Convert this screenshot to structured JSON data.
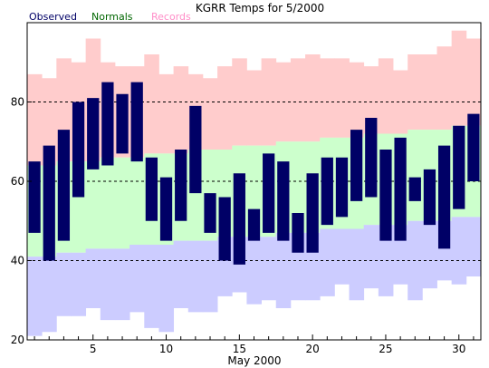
{
  "chart_data": {
    "type": "bar",
    "title": "KGRR Temps for 5/2000",
    "xlabel": "May 2000",
    "ylabel": "",
    "ylim": [
      20,
      100
    ],
    "xlim": [
      0.5,
      31.5
    ],
    "yticks": [
      20,
      40,
      60,
      80
    ],
    "xticks": [
      5,
      10,
      15,
      20,
      25,
      30
    ],
    "gridlines_y": [
      40,
      60,
      80
    ],
    "legend": {
      "placement": "top-left",
      "entries": [
        {
          "name": "Observed",
          "color": "#000066"
        },
        {
          "name": "Normals",
          "color": "#006600"
        },
        {
          "name": "Records",
          "color": "#ff8ec8"
        }
      ]
    },
    "colors": {
      "observed": "#000066",
      "normals_fill": "#ccffcc",
      "record_high_fill": "#ffcccc",
      "record_low_fill": "#ccccff"
    },
    "days": [
      1,
      2,
      3,
      4,
      5,
      6,
      7,
      8,
      9,
      10,
      11,
      12,
      13,
      14,
      15,
      16,
      17,
      18,
      19,
      20,
      21,
      22,
      23,
      24,
      25,
      26,
      27,
      28,
      29,
      30,
      31
    ],
    "series": [
      {
        "name": "Observed",
        "low": [
          47,
          40,
          45,
          56,
          63,
          64,
          67,
          65,
          50,
          45,
          50,
          57,
          47,
          40,
          39,
          45,
          47,
          45,
          42,
          42,
          49,
          51,
          55,
          56,
          45,
          45,
          55,
          49,
          43,
          53,
          60
        ],
        "high": [
          65,
          69,
          73,
          80,
          81,
          85,
          82,
          85,
          66,
          61,
          68,
          79,
          57,
          56,
          62,
          53,
          67,
          65,
          52,
          62,
          66,
          66,
          73,
          76,
          68,
          71,
          61,
          63,
          69,
          74,
          77
        ]
      },
      {
        "name": "Normals",
        "low": [
          41,
          41,
          42,
          42,
          43,
          43,
          43,
          44,
          44,
          44,
          45,
          45,
          45,
          46,
          46,
          46,
          46,
          47,
          47,
          47,
          48,
          48,
          48,
          49,
          49,
          49,
          50,
          50,
          50,
          51,
          51
        ],
        "high": [
          64,
          64,
          65,
          65,
          65,
          66,
          66,
          66,
          67,
          67,
          67,
          68,
          68,
          68,
          69,
          69,
          69,
          70,
          70,
          70,
          71,
          71,
          71,
          72,
          72,
          72,
          73,
          73,
          73,
          74,
          74
        ]
      },
      {
        "name": "Records",
        "low": [
          21,
          22,
          26,
          26,
          28,
          25,
          25,
          27,
          23,
          22,
          28,
          27,
          27,
          31,
          32,
          29,
          30,
          28,
          30,
          30,
          31,
          34,
          30,
          33,
          31,
          34,
          30,
          33,
          35,
          34,
          36
        ],
        "high": [
          87,
          86,
          91,
          90,
          96,
          90,
          89,
          89,
          92,
          87,
          89,
          87,
          86,
          89,
          91,
          88,
          91,
          90,
          91,
          92,
          91,
          91,
          90,
          89,
          91,
          88,
          92,
          92,
          94,
          98,
          96
        ]
      }
    ]
  }
}
